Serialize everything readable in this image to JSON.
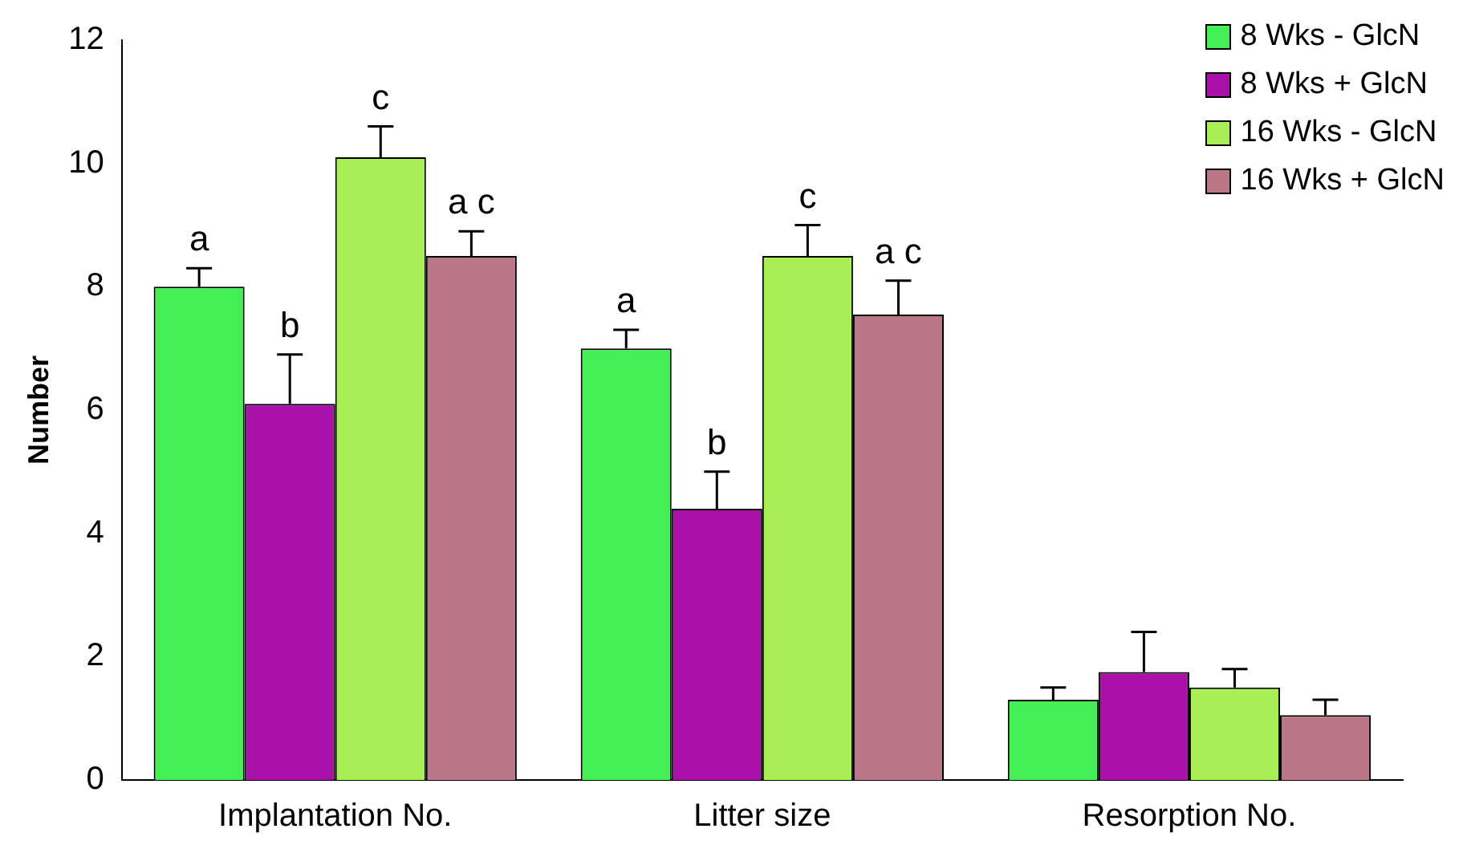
{
  "chart_data": {
    "type": "bar",
    "ylabel": "Number",
    "categories": [
      "Implantation No.",
      "Litter size",
      "Resorption No."
    ],
    "series": [
      {
        "name": "8 Wks - GlcN",
        "color": "#44ee55",
        "values": [
          8.0,
          7.0,
          1.3
        ],
        "errors": [
          [
            8.0,
            8.3
          ],
          [
            7.0,
            7.3
          ],
          [
            1.3,
            1.5
          ]
        ]
      },
      {
        "name": "8 Wks + GlcN",
        "color": "#aa11aa",
        "values": [
          6.1,
          4.4,
          1.75
        ],
        "errors": [
          [
            6.1,
            6.9
          ],
          [
            4.4,
            5.0
          ],
          [
            1.75,
            2.4
          ]
        ]
      },
      {
        "name": "16 Wks - GlcN",
        "color": "#aaee55",
        "values": [
          10.1,
          8.5,
          1.5
        ],
        "errors": [
          [
            10.1,
            10.6
          ],
          [
            8.5,
            9.0
          ],
          [
            1.5,
            1.8
          ]
        ]
      },
      {
        "name": "16 Wks + GlcN",
        "color": "#bb7788",
        "values": [
          8.5,
          7.55,
          1.05
        ],
        "errors": [
          [
            8.5,
            8.9
          ],
          [
            7.55,
            8.1
          ],
          [
            1.05,
            1.3
          ]
        ]
      }
    ],
    "ylim": [
      0,
      12
    ],
    "yticks": [
      0,
      2,
      4,
      6,
      8,
      10,
      12
    ],
    "grid": false,
    "legend": "top right",
    "annotations": [
      "a",
      "b",
      "c",
      "a c",
      "a",
      "b",
      "c",
      "a c"
    ]
  }
}
